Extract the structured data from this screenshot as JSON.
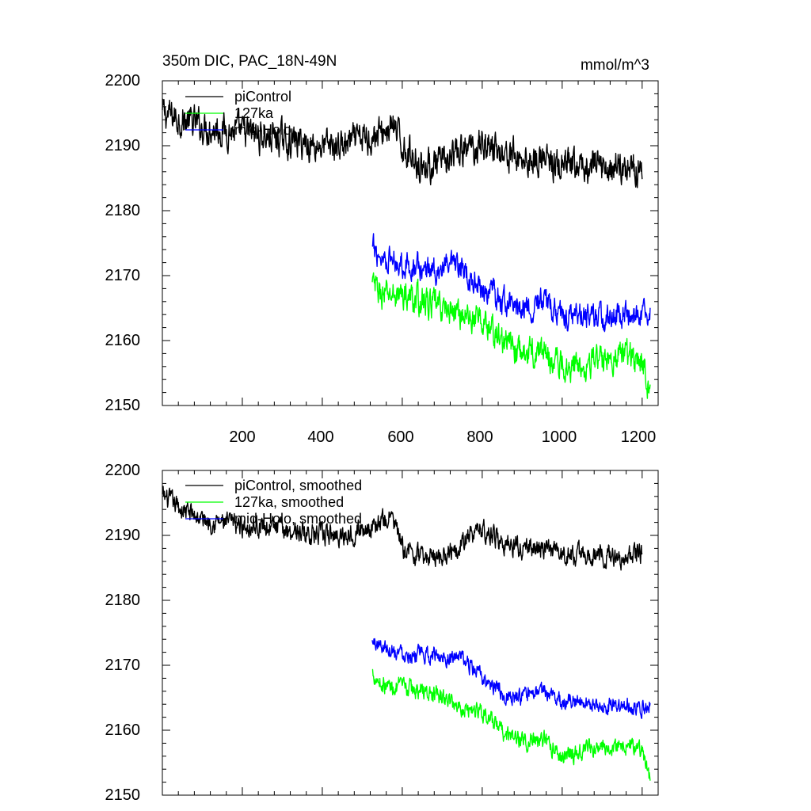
{
  "chart_data": [
    {
      "type": "line",
      "title": "350m DIC, PAC_18N-49N",
      "units": "mmol/m^3",
      "xlabel": "",
      "ylabel": "",
      "xlim": [
        0,
        1240
      ],
      "ylim": [
        2150,
        2200
      ],
      "x_ticks": [
        200,
        400,
        600,
        800,
        1000,
        1200
      ],
      "x_tick_labels": [
        "200",
        "400",
        "600",
        "800",
        "1000",
        "1200"
      ],
      "y_ticks": [
        2150,
        2160,
        2170,
        2180,
        2190,
        2200
      ],
      "y_tick_labels": [
        "2150",
        "2160",
        "2170",
        "2180",
        "2190",
        "2200"
      ],
      "legend_position": "top-left",
      "series": [
        {
          "name": "piControl",
          "color": "#000000",
          "x": [
            0,
            50,
            100,
            150,
            200,
            250,
            300,
            350,
            400,
            450,
            500,
            550,
            575,
            600,
            650,
            700,
            750,
            800,
            850,
            900,
            950,
            1000,
            1050,
            1100,
            1150,
            1200
          ],
          "values": [
            2195,
            2194,
            2193,
            2192.5,
            2192,
            2191.5,
            2191,
            2190.5,
            2190,
            2190,
            2191,
            2192,
            2193,
            2190,
            2187,
            2187,
            2189,
            2190.5,
            2189,
            2188,
            2188,
            2186.5,
            2186.5,
            2187,
            2186.5,
            2187
          ],
          "amplitude": 2.2
        },
        {
          "name": "127ka",
          "color": "#00ff00",
          "x": [
            525,
            550,
            600,
            650,
            700,
            750,
            800,
            850,
            900,
            950,
            1000,
            1050,
            1100,
            1150,
            1200,
            1220
          ],
          "values": [
            2168.5,
            2167,
            2167,
            2166,
            2165,
            2164,
            2163,
            2160,
            2158,
            2158.5,
            2156,
            2156.5,
            2157,
            2158,
            2157,
            2152
          ],
          "amplitude": 2.0
        },
        {
          "name": "mid-Holo",
          "color": "#0000ff",
          "x": [
            525,
            550,
            600,
            650,
            700,
            750,
            800,
            850,
            900,
            950,
            1000,
            1050,
            1100,
            1150,
            1200,
            1220
          ],
          "values": [
            2174,
            2173,
            2172,
            2171,
            2171,
            2171,
            2168,
            2166,
            2165,
            2166,
            2164,
            2164,
            2163.5,
            2164,
            2163.5,
            2164.5
          ],
          "amplitude": 1.8
        }
      ]
    },
    {
      "type": "line",
      "title": "",
      "units": "",
      "xlabel": "",
      "ylabel": "",
      "xlim": [
        0,
        1240
      ],
      "ylim": [
        2150,
        2200
      ],
      "x_ticks": [
        200,
        400,
        600,
        800,
        1000,
        1200
      ],
      "y_ticks": [
        2150,
        2160,
        2170,
        2180,
        2190,
        2200
      ],
      "y_tick_labels": [
        "2150",
        "2160",
        "2170",
        "2180",
        "2190",
        "2200"
      ],
      "legend_position": "top-left",
      "series": [
        {
          "name": "piControl, smoothed",
          "color": "#000000",
          "x": [
            0,
            50,
            100,
            150,
            200,
            250,
            300,
            350,
            400,
            450,
            500,
            550,
            575,
            600,
            650,
            700,
            750,
            800,
            850,
            900,
            950,
            1000,
            1050,
            1100,
            1150,
            1200
          ],
          "values": [
            2196,
            2194,
            2192.5,
            2192,
            2191.5,
            2191.5,
            2191,
            2190.5,
            2190,
            2190,
            2191,
            2192,
            2193,
            2188,
            2186.5,
            2187,
            2189,
            2191,
            2189,
            2188,
            2188,
            2187,
            2187,
            2187,
            2186.5,
            2187.5
          ],
          "amplitude": 1.4
        },
        {
          "name": "127ka, smoothed",
          "color": "#00ff00",
          "x": [
            525,
            550,
            600,
            650,
            700,
            750,
            800,
            850,
            900,
            950,
            1000,
            1050,
            1100,
            1150,
            1200,
            1220
          ],
          "values": [
            2169,
            2167,
            2166.5,
            2166,
            2165,
            2163.5,
            2163,
            2159.5,
            2158.5,
            2158.5,
            2156,
            2157,
            2157,
            2158,
            2157,
            2152
          ],
          "amplitude": 1.2
        },
        {
          "name": "mid-Holo, smoothed",
          "color": "#0000ff",
          "x": [
            525,
            550,
            600,
            650,
            700,
            750,
            800,
            850,
            900,
            950,
            1000,
            1050,
            1100,
            1150,
            1200,
            1220
          ],
          "values": [
            2173.5,
            2173,
            2172,
            2171.5,
            2171.5,
            2171,
            2168,
            2165.5,
            2165,
            2166,
            2164.5,
            2164.5,
            2163.5,
            2164,
            2163.5,
            2164.5
          ],
          "amplitude": 1.1
        }
      ]
    }
  ]
}
